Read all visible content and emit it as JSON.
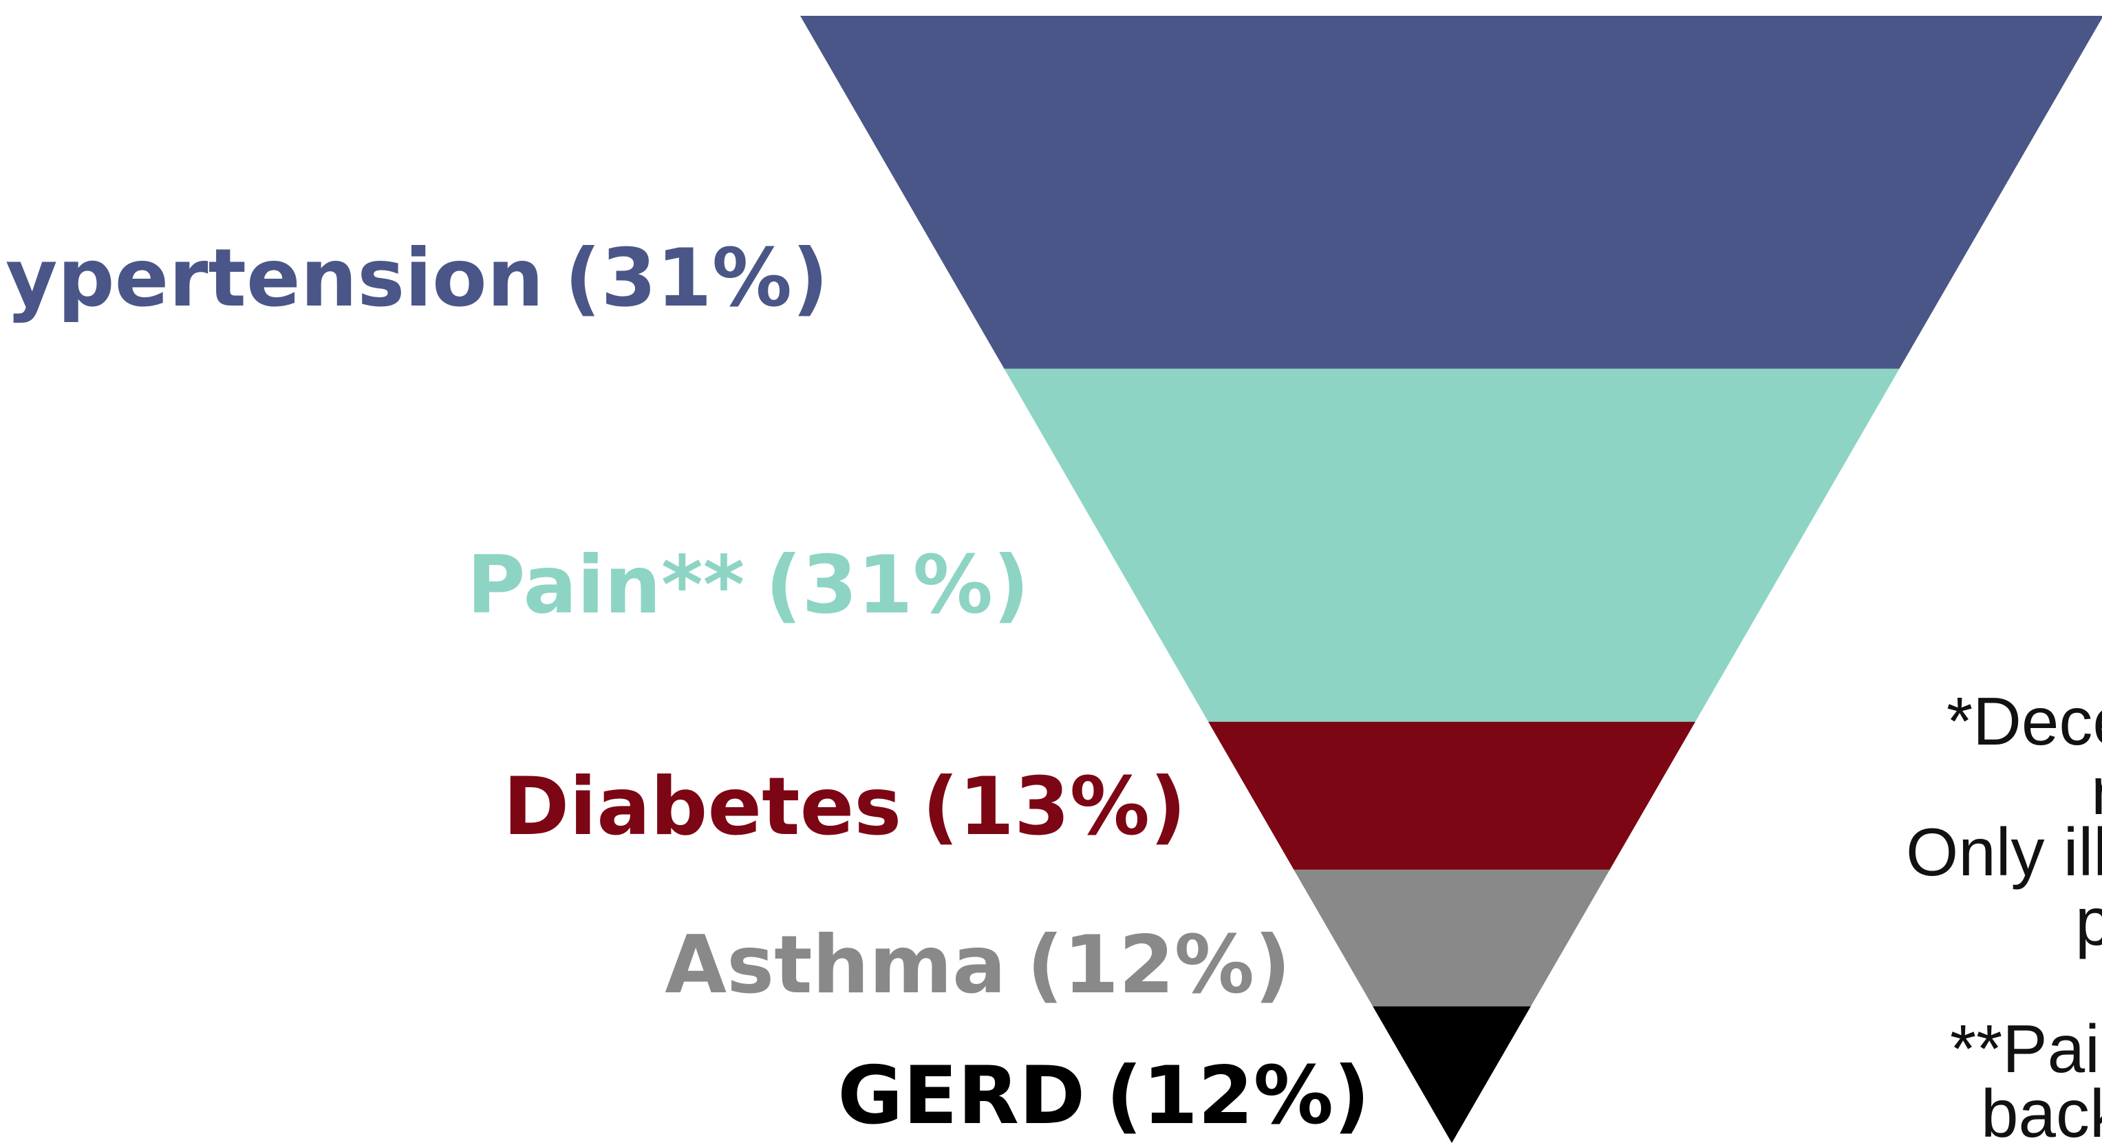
{
  "chart_data": {
    "type": "funnel",
    "categories": [
      "Hypertension",
      "Pain**",
      "Diabetes",
      "Asthma",
      "GERD"
    ],
    "values": [
      31,
      31,
      13,
      12,
      12
    ],
    "value_labels": [
      "(31%)",
      "(31%)",
      "(13%)",
      "(12%)",
      "(12%)"
    ],
    "colors": [
      "#4a5687",
      "#8dd4c4",
      "#7d0614",
      "#898989",
      "#000000"
    ],
    "footnotes": [
      "*Dece",
      "r",
      "Only ill",
      "p",
      "**Pai",
      "back"
    ]
  }
}
